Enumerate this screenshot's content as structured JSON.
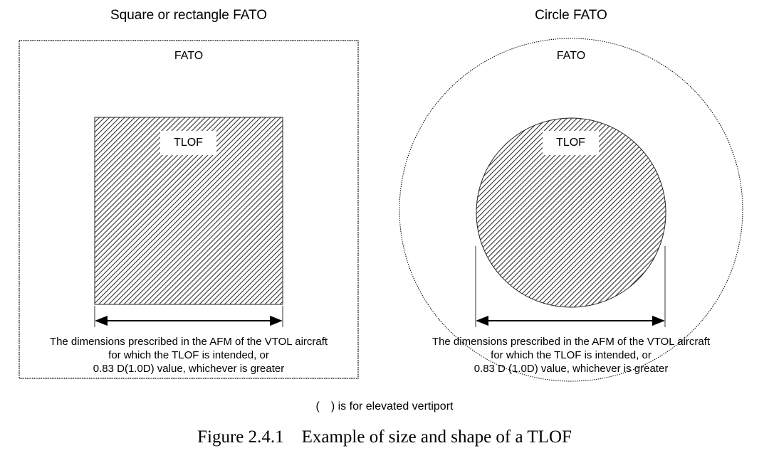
{
  "left": {
    "title": "Square or rectangle FATO",
    "fato_label": "FATO",
    "tlof_label": "TLOF",
    "note": [
      "The dimensions prescribed in the AFM of the VTOL aircraft",
      "for which the TLOF is intended, or",
      "0.83 D(1.0D) value, whichever is greater"
    ]
  },
  "right": {
    "title": "Circle FATO",
    "fato_label": "FATO",
    "tlof_label": "TLOF",
    "note": [
      "The dimensions prescribed in the AFM of the VTOL aircraft",
      "for which the TLOF is intended, or",
      "0.83 D (1.0D) value, whichever is greater"
    ]
  },
  "footnote": "(　) is for elevated vertiport",
  "caption": "Figure 2.4.1    Example of size and shape of a TLOF"
}
